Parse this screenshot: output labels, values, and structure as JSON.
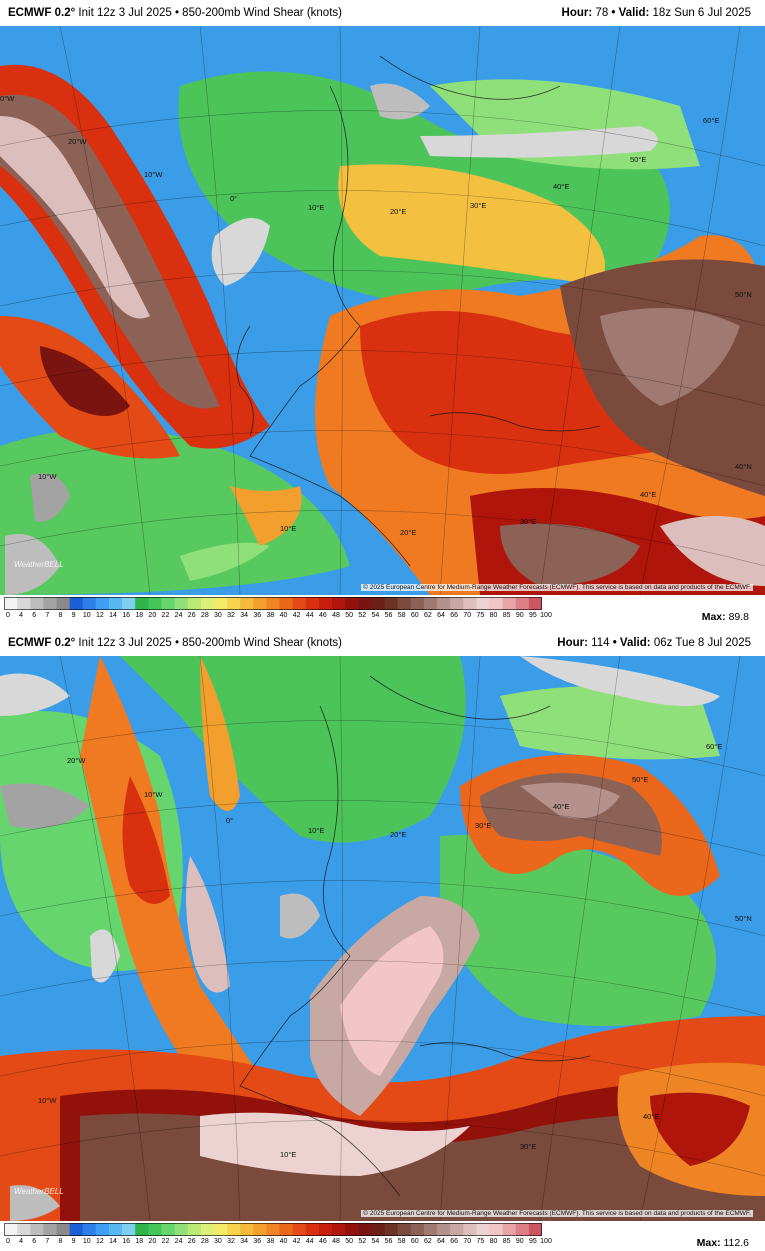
{
  "panels": [
    {
      "header_left_model": "ECMWF 0.2°",
      "header_left_rest": "Init 12z 3 Jul 2025 • 850-200mb Wind Shear (knots)",
      "hour_label": "Hour:",
      "hour_value": "78",
      "valid_label": "• Valid:",
      "valid_value": "18z Sun 6 Jul 2025",
      "max_label": "Max:",
      "max_value": "89.8",
      "credit": "© 2025 European Centre for Medium-Range Weather Forecasts (ECMWF). This service is based on data and products of the ECMWF.",
      "watermark": "WeatherBELL",
      "grid_labels": [
        "0°W",
        "20°W",
        "10°W",
        "0°",
        "10°E",
        "20°E",
        "30°E",
        "40°E",
        "50°E",
        "60°E",
        "50°N",
        "40°N",
        "40°E",
        "30°E",
        "20°E",
        "10°E",
        "10°W"
      ]
    },
    {
      "header_left_model": "ECMWF 0.2°",
      "header_left_rest": "Init 12z 3 Jul 2025 • 850-200mb Wind Shear (knots)",
      "hour_label": "Hour:",
      "hour_value": "114",
      "valid_label": "• Valid:",
      "valid_value": "06z Tue 8 Jul 2025",
      "max_label": "Max:",
      "max_value": "112.6",
      "credit": "© 2025 European Centre for Medium-Range Weather Forecasts (ECMWF). This service is based on data and products of the ECMWF.",
      "watermark": "WeatherBELL",
      "grid_labels": [
        "20°W",
        "10°W",
        "0°",
        "10°E",
        "20°E",
        "30°E",
        "40°E",
        "50°E",
        "60°E",
        "50°N",
        "40°E",
        "30°E",
        "10°E",
        "10°W"
      ]
    }
  ],
  "colorbar": {
    "ticks": [
      "0",
      "4",
      "6",
      "7",
      "8",
      "9",
      "10",
      "12",
      "14",
      "16",
      "18",
      "20",
      "22",
      "24",
      "26",
      "28",
      "30",
      "32",
      "34",
      "36",
      "38",
      "40",
      "42",
      "44",
      "46",
      "48",
      "50",
      "52",
      "54",
      "56",
      "58",
      "60",
      "62",
      "64",
      "66",
      "70",
      "75",
      "80",
      "85",
      "90",
      "95",
      "100"
    ],
    "colors": [
      "#f4f4f4",
      "#d8d8d8",
      "#bdbdbd",
      "#a3a3a3",
      "#8a8a8a",
      "#1a5fd6",
      "#2f7fe8",
      "#3f9ef2",
      "#57b8f4",
      "#7fd0f0",
      "#2fb34a",
      "#46c55a",
      "#66d56e",
      "#8fe07a",
      "#b8ea74",
      "#dff07a",
      "#f4ea66",
      "#f6d44e",
      "#f4bb3c",
      "#f29f2e",
      "#ef8424",
      "#ea671c",
      "#e44a16",
      "#d9310f",
      "#c81e0c",
      "#b0150b",
      "#93110b",
      "#7a1410",
      "#6a2016",
      "#6b3225",
      "#7a4a3c",
      "#8c6257",
      "#a07a70",
      "#b4918a",
      "#c8a8a3",
      "#dcbfbc",
      "#ecd3d1",
      "#f3c6c6",
      "#e9a4a8",
      "#dc7f86",
      "#cc5664"
    ],
    "colors_note": "values shown as filled color cells"
  }
}
